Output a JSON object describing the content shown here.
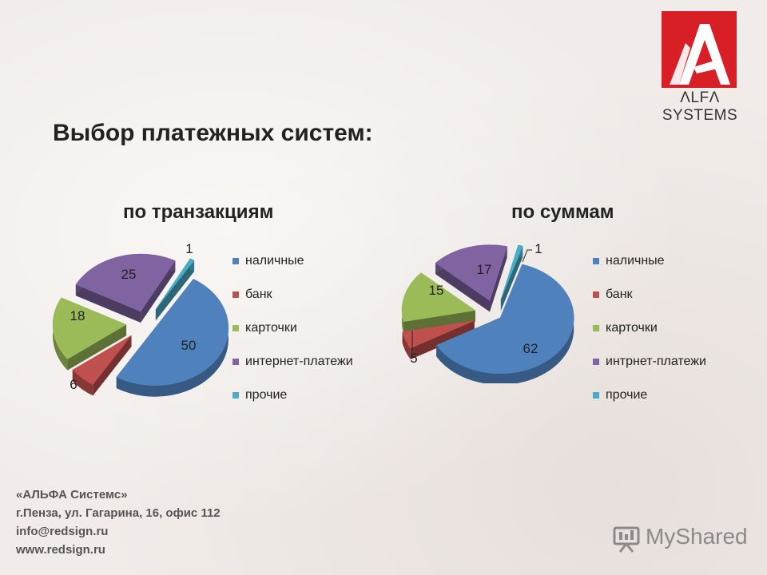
{
  "header": {
    "title": "Выбор платежных систем:",
    "logo_text": "ΛLFΛ SYSTEMS",
    "logo_color": "#d81f26"
  },
  "colors": {
    "series": [
      "#4f81bd",
      "#c0504d",
      "#9bbb59",
      "#8064a2",
      "#4bacc6"
    ]
  },
  "chart_data": [
    {
      "type": "pie",
      "title": "по транзакциям",
      "categories": [
        "наличные",
        "банк",
        "карточки",
        "интернет-платежи",
        "прочие"
      ],
      "values": [
        50,
        6,
        18,
        25,
        1
      ],
      "data_labels": [
        "50",
        "6",
        "18",
        "25",
        "1"
      ],
      "exploded": true,
      "legend": "right"
    },
    {
      "type": "pie",
      "title": "по суммам",
      "categories": [
        "наличные",
        "банк",
        "карточки",
        "интрнет-платежи",
        "прочие"
      ],
      "values": [
        62,
        5,
        15,
        17,
        1
      ],
      "data_labels": [
        "62",
        "5",
        "15",
        "17",
        "1"
      ],
      "exploded": true,
      "legend": "right"
    }
  ],
  "footer": {
    "company": "«АЛЬФА Системс»",
    "address": "г.Пенза, ул. Гагарина, 16, офис 112",
    "email": "info@redsign.ru",
    "website": "www.redsign.ru",
    "watermark": "MyShared"
  }
}
